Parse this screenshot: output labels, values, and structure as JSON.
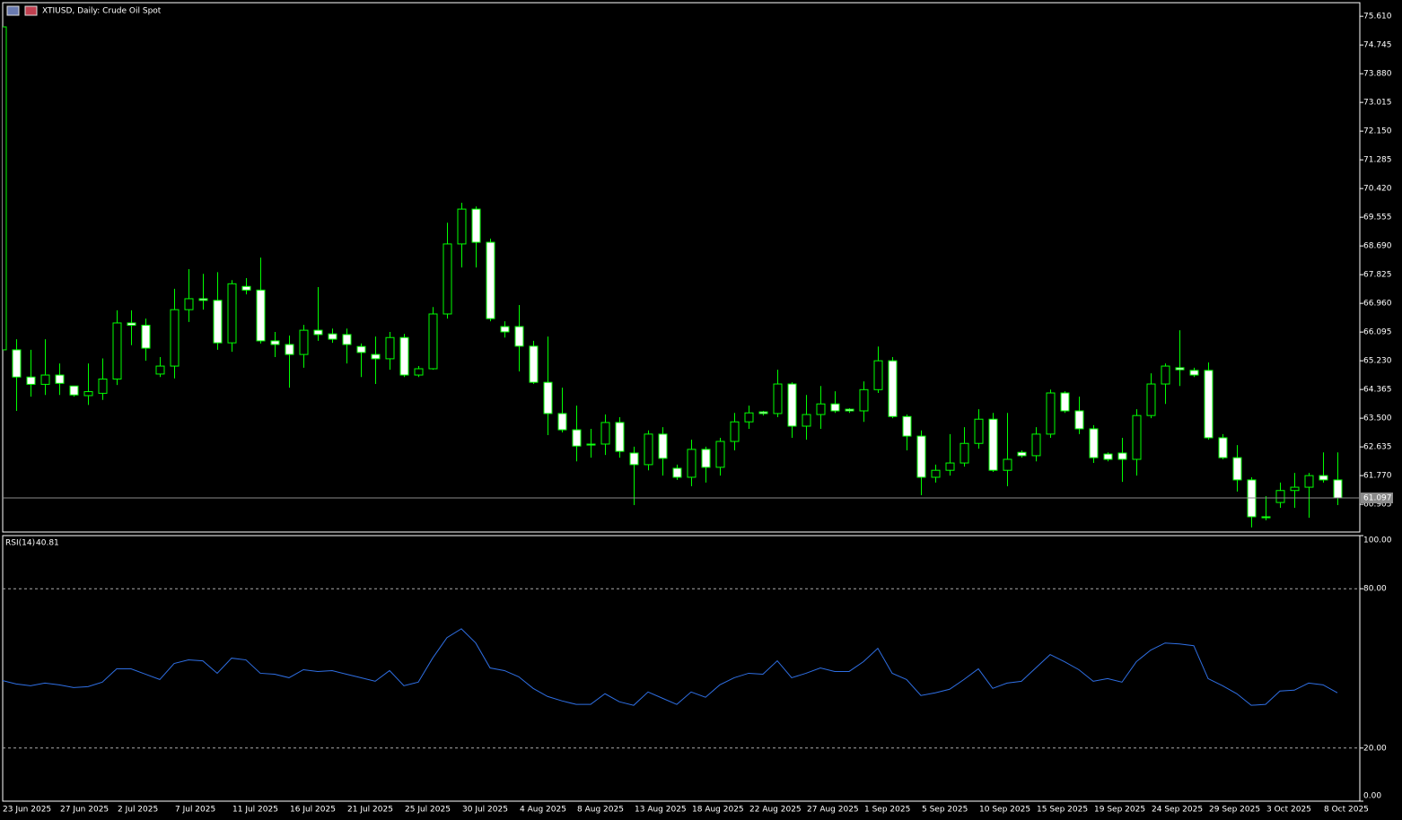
{
  "chart_data": [
    {
      "type": "candlestick",
      "title": "XTIUSD, Daily:  Crude Oil Spot",
      "categories": [
        "23 Jun 2025",
        null,
        null,
        null,
        "27 Jun 2025",
        null,
        null,
        null,
        "2 Jul 2025",
        null,
        null,
        null,
        "7 Jul 2025",
        null,
        null,
        null,
        "11 Jul 2025",
        null,
        null,
        null,
        "16 Jul 2025",
        null,
        null,
        null,
        "21 Jul 2025",
        null,
        null,
        null,
        "25 Jul 2025",
        null,
        null,
        null,
        "30 Jul 2025",
        null,
        null,
        null,
        "4 Aug 2025",
        null,
        null,
        null,
        "8 Aug 2025",
        null,
        null,
        null,
        "13 Aug 2025",
        null,
        null,
        null,
        "18 Aug 2025",
        null,
        null,
        null,
        "22 Aug 2025",
        null,
        null,
        null,
        "27 Aug 2025",
        null,
        null,
        null,
        "1 Sep 2025",
        null,
        null,
        null,
        "5 Sep 2025",
        null,
        null,
        null,
        "10 Sep 2025",
        null,
        null,
        null,
        "15 Sep 2025",
        null,
        null,
        null,
        "19 Sep 2025",
        null,
        null,
        null,
        "24 Sep 2025",
        null,
        null,
        null,
        "29 Sep 2025",
        null,
        null,
        null,
        "3 Oct 2025",
        null,
        null,
        null,
        "8 Oct 2025",
        null
      ],
      "open": [
        65.56,
        65.56,
        64.74,
        64.52,
        64.8,
        64.47,
        64.18,
        64.25,
        64.68,
        66.37,
        66.3,
        64.83,
        65.07,
        66.77,
        67.1,
        67.05,
        65.77,
        67.47,
        67.36,
        65.83,
        65.72,
        65.42,
        66.15,
        66.04,
        66.02,
        65.66,
        65.42,
        65.29,
        65.93,
        64.8,
        64.99,
        66.64,
        68.75,
        69.8,
        68.8,
        66.26,
        66.26,
        65.67,
        64.58,
        63.64,
        63.15,
        62.72,
        62.72,
        63.37,
        62.45,
        62.1,
        63.02,
        61.99,
        61.72,
        62.56,
        62.02,
        62.8,
        63.39,
        63.69,
        63.64,
        64.53,
        63.26,
        63.61,
        63.93,
        63.77,
        63.72,
        64.36,
        65.23,
        63.55,
        62.96,
        61.72,
        61.93,
        62.15,
        62.74,
        63.47,
        61.93,
        62.47,
        62.37,
        63.02,
        64.26,
        63.72,
        63.18,
        62.42,
        62.45,
        62.26,
        63.58,
        64.53,
        65.02,
        64.94,
        64.94,
        62.91,
        62.31,
        61.64,
        60.53,
        60.96,
        61.32,
        61.42,
        61.77,
        61.64
      ],
      "high": [
        75.29,
        65.88,
        65.56,
        65.88,
        65.15,
        64.47,
        65.15,
        65.3,
        66.75,
        66.75,
        66.5,
        65.34,
        67.4,
        67.99,
        67.85,
        67.9,
        67.66,
        67.72,
        68.34,
        66.1,
        65.99,
        66.31,
        67.45,
        66.2,
        66.2,
        65.75,
        65.96,
        66.1,
        66.04,
        65.07,
        66.85,
        69.39,
        69.99,
        69.88,
        68.91,
        66.42,
        66.91,
        65.83,
        65.96,
        64.42,
        63.88,
        63.18,
        63.61,
        63.53,
        62.64,
        63.13,
        63.23,
        62.1,
        62.85,
        62.64,
        62.91,
        63.66,
        63.88,
        63.72,
        64.96,
        64.58,
        64.2,
        64.47,
        64.31,
        63.8,
        64.61,
        65.66,
        65.34,
        63.61,
        63.13,
        62.1,
        63.02,
        63.23,
        63.77,
        63.66,
        63.66,
        62.53,
        63.23,
        64.36,
        64.31,
        64.15,
        63.29,
        62.47,
        62.91,
        63.77,
        64.85,
        65.15,
        66.15,
        65.02,
        65.18,
        63.02,
        62.69,
        61.72,
        61.15,
        61.56,
        61.85,
        61.85,
        62.47,
        62.47
      ],
      "low": [
        65.56,
        63.72,
        64.15,
        64.2,
        64.2,
        64.15,
        63.9,
        64.05,
        64.5,
        65.7,
        65.23,
        64.74,
        64.7,
        66.4,
        66.77,
        65.56,
        65.5,
        67.23,
        65.75,
        65.34,
        64.42,
        65.02,
        65.83,
        65.77,
        65.15,
        64.74,
        64.53,
        64.96,
        64.74,
        64.74,
        64.96,
        66.5,
        68.04,
        68.04,
        66.42,
        65.93,
        64.91,
        64.53,
        62.99,
        63.07,
        62.2,
        62.31,
        62.39,
        62.31,
        60.88,
        61.93,
        61.77,
        61.64,
        61.45,
        61.56,
        61.77,
        62.53,
        63.18,
        63.58,
        63.53,
        62.91,
        62.85,
        63.18,
        63.66,
        63.66,
        63.39,
        64.26,
        63.5,
        62.53,
        61.18,
        61.56,
        61.77,
        62.04,
        62.58,
        61.88,
        61.45,
        62.31,
        62.2,
        62.91,
        63.66,
        63.02,
        62.15,
        62.2,
        61.58,
        61.77,
        63.5,
        63.93,
        64.47,
        64.74,
        62.85,
        62.26,
        61.29,
        60.21,
        60.42,
        60.8,
        60.8,
        60.5,
        61.56,
        60.88
      ],
      "close": [
        75.29,
        64.74,
        64.52,
        64.8,
        64.55,
        64.2,
        64.3,
        64.68,
        66.37,
        66.3,
        65.61,
        65.07,
        66.77,
        67.1,
        67.05,
        65.77,
        67.55,
        67.36,
        65.83,
        65.72,
        65.42,
        66.15,
        66.02,
        65.88,
        65.72,
        65.48,
        65.29,
        65.93,
        64.8,
        64.99,
        66.64,
        68.75,
        69.8,
        68.8,
        66.5,
        66.1,
        65.67,
        64.58,
        63.64,
        63.15,
        62.66,
        62.69,
        63.37,
        62.5,
        62.1,
        63.02,
        62.29,
        61.72,
        62.56,
        62.02,
        62.8,
        63.39,
        63.66,
        63.64,
        64.53,
        63.26,
        63.61,
        63.93,
        63.72,
        63.72,
        64.36,
        65.23,
        63.55,
        62.96,
        61.72,
        61.93,
        62.15,
        62.74,
        63.47,
        61.93,
        62.26,
        62.37,
        63.02,
        64.26,
        63.72,
        63.18,
        62.31,
        62.26,
        62.26,
        63.58,
        64.53,
        65.07,
        64.96,
        64.8,
        62.91,
        62.31,
        61.64,
        60.53,
        60.5,
        61.32,
        61.42,
        61.77,
        61.64,
        61.097
      ],
      "ylim": [
        60.07,
        76.02
      ],
      "yticks": [
        {
          "value": 75.61,
          "label": "75.610"
        },
        {
          "value": 74.745,
          "label": "74.745"
        },
        {
          "value": 73.88,
          "label": "73.880"
        },
        {
          "value": 73.015,
          "label": "73.015"
        },
        {
          "value": 72.15,
          "label": "72.150"
        },
        {
          "value": 71.285,
          "label": "71.285"
        },
        {
          "value": 70.42,
          "label": "70.420"
        },
        {
          "value": 69.555,
          "label": "69.555"
        },
        {
          "value": 68.69,
          "label": "68.690"
        },
        {
          "value": 67.825,
          "label": "67.825"
        },
        {
          "value": 66.96,
          "label": "66.960"
        },
        {
          "value": 66.095,
          "label": "66.095"
        },
        {
          "value": 65.23,
          "label": "65.230"
        },
        {
          "value": 64.365,
          "label": "64.365"
        },
        {
          "value": 63.5,
          "label": "63.500"
        },
        {
          "value": 62.635,
          "label": "62.635"
        },
        {
          "value": 61.77,
          "label": "61.770"
        },
        {
          "value": 60.905,
          "label": "60.905"
        }
      ],
      "line_color": "#00ff00",
      "bull_fill": "#000000",
      "bear_fill": "#ffffff"
    },
    {
      "type": "line",
      "name": "RSI(14)",
      "values": [
        45.48,
        44.14,
        43.47,
        44.47,
        43.8,
        42.8,
        43.13,
        44.81,
        49.84,
        49.84,
        47.82,
        45.81,
        51.85,
        53.19,
        52.85,
        48.16,
        53.86,
        53.19,
        48.16,
        47.82,
        46.48,
        49.5,
        48.83,
        49.17,
        47.82,
        46.48,
        45.14,
        49.17,
        43.47,
        44.81,
        53.86,
        61.57,
        64.92,
        59.56,
        50.17,
        49.17,
        46.82,
        42.46,
        39.44,
        37.77,
        36.43,
        36.43,
        40.45,
        37.43,
        36.09,
        41.12,
        38.77,
        36.43,
        41.12,
        39.11,
        43.8,
        46.48,
        48.16,
        47.82,
        52.85,
        46.48,
        48.16,
        50.17,
        48.83,
        48.83,
        52.52,
        57.55,
        48.16,
        45.81,
        39.78,
        40.78,
        42.13,
        45.81,
        49.84,
        42.46,
        44.47,
        45.14,
        50.17,
        55.2,
        52.52,
        49.5,
        45.14,
        46.15,
        44.81,
        52.52,
        56.88,
        59.56,
        59.22,
        58.55,
        46.15,
        43.47,
        40.45,
        36.09,
        36.43,
        41.46,
        41.79,
        44.47,
        43.8,
        40.81
      ],
      "color": "#2f6fe4",
      "ylim": [
        0,
        100
      ],
      "yticks": [
        {
          "value": 100,
          "label": "100.00"
        },
        {
          "value": 80,
          "label": "80.00"
        },
        {
          "value": 20,
          "label": "20.00"
        },
        {
          "value": 0,
          "label": "0.00"
        }
      ],
      "levels": [
        80,
        20
      ]
    }
  ]
}
